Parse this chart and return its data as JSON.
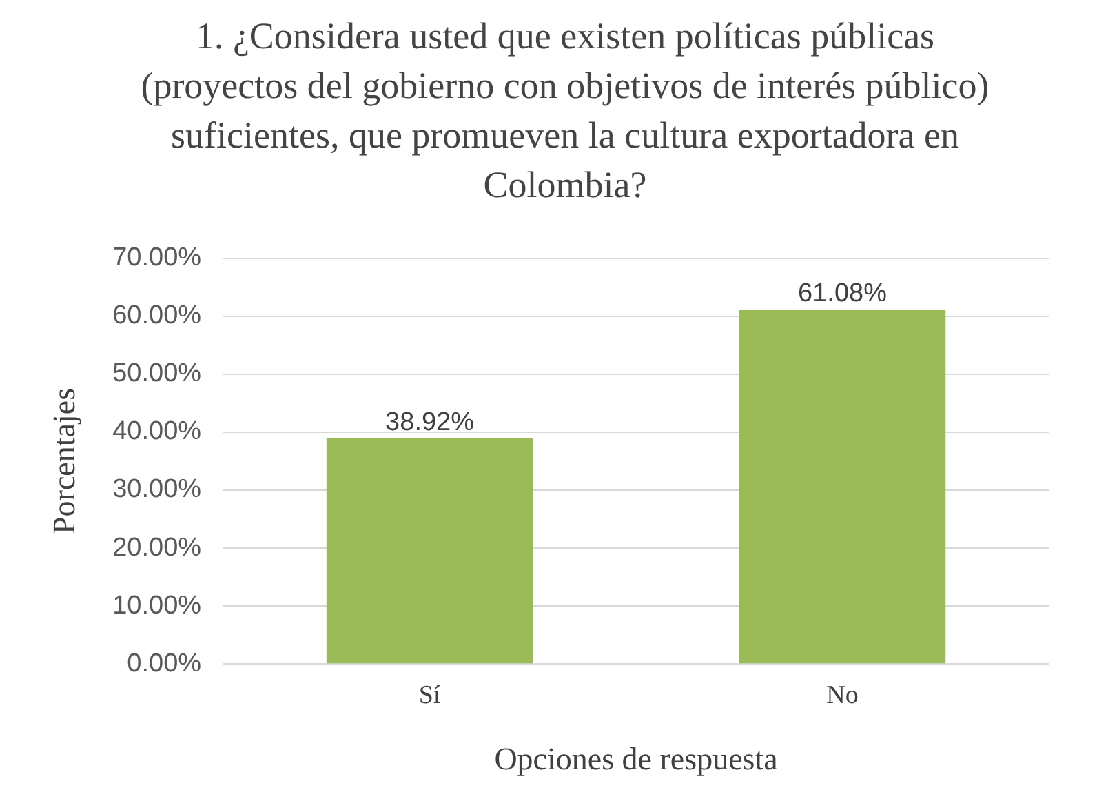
{
  "chart_data": {
    "type": "bar",
    "title": "1. ¿Considera usted que existen políticas públicas (proyectos del gobierno con objetivos de interés público) suficientes, que promueven la cultura exportadora en Colombia?",
    "xlabel": "Opciones de respuesta",
    "ylabel": "Porcentajes",
    "categories": [
      "Sí",
      "No"
    ],
    "values": [
      38.92,
      61.08
    ],
    "color": "#9bbb59",
    "value_labels": [
      "38.92%",
      "61.08%"
    ],
    "ylim": [
      0,
      70
    ],
    "yticks": [
      {
        "value": 0,
        "label": "0.00%"
      },
      {
        "value": 10,
        "label": "10.00%"
      },
      {
        "value": 20,
        "label": "20.00%"
      },
      {
        "value": 30,
        "label": "30.00%"
      },
      {
        "value": 40,
        "label": "40.00%"
      },
      {
        "value": 50,
        "label": "50.00%"
      },
      {
        "value": 60,
        "label": "60.00%"
      },
      {
        "value": 70,
        "label": "70.00%"
      }
    ],
    "grid": "y",
    "legend": false
  }
}
